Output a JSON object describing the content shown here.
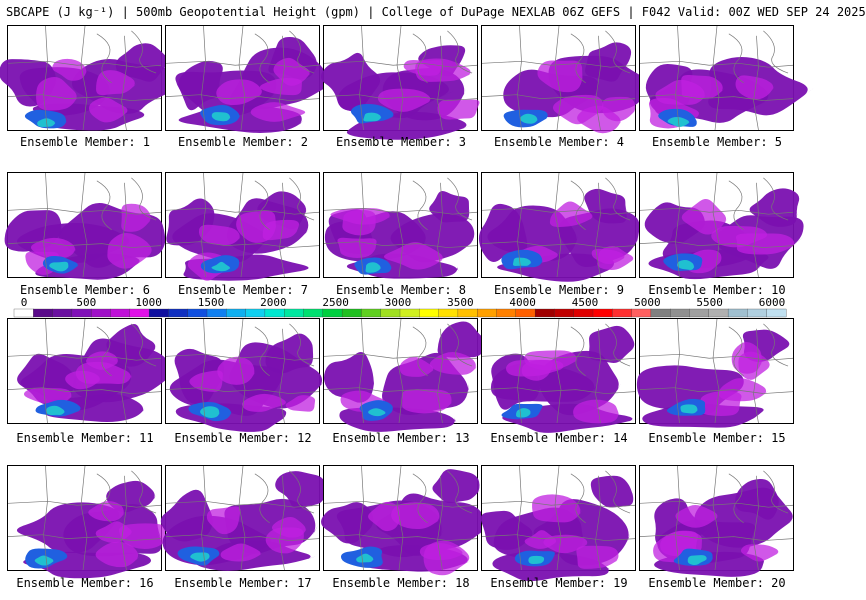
{
  "title": "SBCAPE (J kg⁻¹) | 500mb Geopotential Height (gpm) | College of DuPage NEXLAB 06Z GEFS | F042 Valid: 00Z WED SEP 24 2025",
  "colorbar": {
    "ticks": [
      "0",
      "500",
      "1000",
      "1500",
      "2000",
      "2500",
      "3000",
      "3500",
      "4000",
      "4500",
      "5000",
      "5500",
      "6000"
    ],
    "colors": [
      "#ffffff",
      "#5a0a8a",
      "#6a10a0",
      "#8010b8",
      "#a010c8",
      "#c010d8",
      "#e010e8",
      "#1010a0",
      "#1030c0",
      "#1050e0",
      "#1080f0",
      "#10b0f0",
      "#10d0f0",
      "#00e8d0",
      "#00e8a0",
      "#00e070",
      "#00d040",
      "#20c020",
      "#60d020",
      "#a0e020",
      "#d0f020",
      "#ffff00",
      "#ffe000",
      "#ffc000",
      "#ffa000",
      "#ff8000",
      "#ff6000",
      "#a00000",
      "#c00000",
      "#e00000",
      "#ff0000",
      "#ff3030",
      "#ff6060",
      "#808080",
      "#909090",
      "#a0a0a0",
      "#b0b0b0",
      "#a0c0d0",
      "#b0d0e0",
      "#c0e0f0"
    ]
  },
  "members": [
    {
      "label": "Ensemble Member: 1"
    },
    {
      "label": "Ensemble Member: 2"
    },
    {
      "label": "Ensemble Member: 3"
    },
    {
      "label": "Ensemble Member: 4"
    },
    {
      "label": "Ensemble Member: 5"
    },
    {
      "label": "Ensemble Member: 6"
    },
    {
      "label": "Ensemble Member: 7"
    },
    {
      "label": "Ensemble Member: 8"
    },
    {
      "label": "Ensemble Member: 9"
    },
    {
      "label": "Ensemble Member: 10"
    },
    {
      "label": "Ensemble Member: 11"
    },
    {
      "label": "Ensemble Member: 12"
    },
    {
      "label": "Ensemble Member: 13"
    },
    {
      "label": "Ensemble Member: 14"
    },
    {
      "label": "Ensemble Member: 15"
    },
    {
      "label": "Ensemble Member: 16"
    },
    {
      "label": "Ensemble Member: 17"
    },
    {
      "label": "Ensemble Member: 18"
    },
    {
      "label": "Ensemble Member: 19"
    },
    {
      "label": "Ensemble Member: 20"
    }
  ],
  "colors": {
    "cape_low": "#7a10b0",
    "cape_mid": "#c020e0",
    "cape_high": "#2060e0",
    "cape_peak": "#20c0d0",
    "borders": "#777777"
  }
}
